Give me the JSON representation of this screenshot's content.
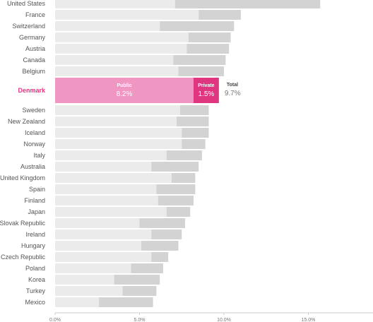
{
  "chart_data": {
    "type": "bar",
    "orientation": "horizontal",
    "stacked": true,
    "highlight": "Denmark",
    "colors": {
      "public": "#ebebeb",
      "private": "#d3d3d3",
      "public_highlight": "#f096c2",
      "private_highlight": "#e0367f",
      "highlight_text": "#e0367f",
      "axis": "#cccccc"
    },
    "xlim": [
      0,
      19
    ],
    "xticks": [
      0,
      5,
      10,
      15
    ],
    "xtick_labels": [
      "0.0%",
      "5.0%",
      "10.0%",
      "15.0%"
    ],
    "categories": [
      "United States",
      "France",
      "Switzerland",
      "Germany",
      "Austria",
      "Canada",
      "Belgium",
      "Denmark",
      "Sweden",
      "New Zealand",
      "Iceland",
      "Norway",
      "Italy",
      "Australia",
      "United Kingdom",
      "Spain",
      "Finland",
      "Japan",
      "Slovak Republic",
      "Ireland",
      "Hungary",
      "Czech Republic",
      "Poland",
      "Korea",
      "Turkey",
      "Mexico"
    ],
    "series": [
      {
        "name": "Public",
        "values": [
          7.1,
          8.5,
          6.2,
          7.9,
          7.8,
          7.0,
          7.3,
          8.2,
          7.4,
          7.2,
          7.5,
          7.5,
          6.6,
          5.7,
          6.9,
          6.0,
          6.1,
          6.6,
          5.0,
          5.7,
          5.1,
          5.7,
          4.5,
          3.5,
          4.0,
          2.6
        ]
      },
      {
        "name": "Private",
        "values": [
          8.6,
          2.5,
          4.4,
          2.5,
          2.5,
          3.1,
          2.7,
          1.5,
          1.7,
          1.9,
          1.6,
          1.4,
          2.1,
          2.8,
          1.4,
          2.3,
          2.1,
          1.4,
          2.7,
          1.8,
          2.2,
          1.0,
          1.9,
          2.7,
          2.0,
          3.2
        ]
      }
    ],
    "callout": {
      "public_label": "Public",
      "public_value": "8.2%",
      "private_label": "Private",
      "private_value": "1.5%",
      "total_label": "Total",
      "total_value": "9.7%"
    }
  }
}
